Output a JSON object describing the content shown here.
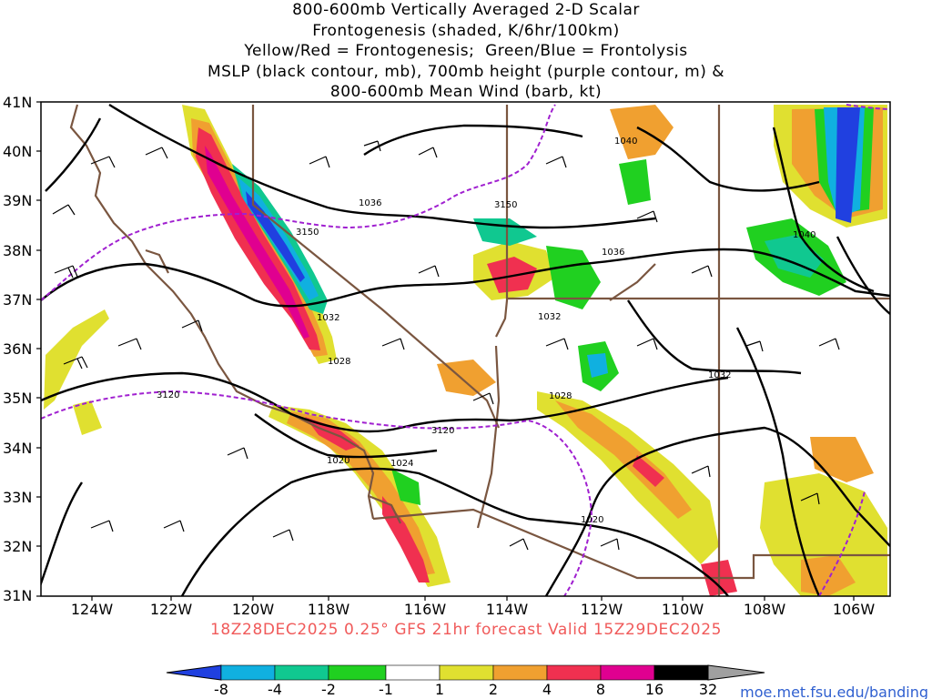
{
  "title_lines": [
    "800-600mb Vertically Averaged 2-D Scalar",
    "Frontogenesis (shaded, K/6hr/100km)",
    "Yellow/Red = Frontogenesis;  Green/Blue = Frontolysis",
    "MSLP (black contour, mb), 700mb height (purple contour, m) &",
    "800-600mb Mean Wind (barb, kt)"
  ],
  "lat_labels": [
    "41N",
    "40N",
    "39N",
    "38N",
    "37N",
    "36N",
    "35N",
    "34N",
    "33N",
    "32N",
    "31N"
  ],
  "lon_labels": [
    "124W",
    "122W",
    "120W",
    "118W",
    "116W",
    "114W",
    "112W",
    "110W",
    "108W",
    "106W"
  ],
  "mslp_labels": [
    "1040",
    "1036",
    "1036",
    "1040",
    "1032",
    "1032",
    "1028",
    "1028",
    "1032",
    "1024",
    "1020",
    "1020"
  ],
  "height_labels": [
    "3150",
    "3150",
    "3120",
    "3120"
  ],
  "footer": "18Z28DEC2025 0.25° GFS 21hr forecast Valid 15Z29DEC2025",
  "colorbar_labels": [
    "-8",
    "-4",
    "-2",
    "-1",
    "1",
    "2",
    "4",
    "8",
    "16",
    "32"
  ],
  "colorbar_colors": [
    "#2040e0",
    "#10b0e0",
    "#10c890",
    "#10d060",
    "#20e020",
    "#ffffff",
    "#e0e030",
    "#f0a030",
    "#f07020",
    "#f03050",
    "#e00090",
    "#000000",
    "#a0a0a0"
  ],
  "credit": "moe.met.fsu.edu/banding",
  "colors": {
    "mslp": "#000000",
    "height": "#a020d0",
    "coast": "#7a5640",
    "frontogenesis_yellow": "#e0e030",
    "frontogenesis_orange": "#f0a030",
    "frontogenesis_red": "#f03050",
    "frontolysis_green": "#20d020",
    "frontolysis_teal": "#10c890",
    "frontolysis_cyan": "#10b0e0",
    "frontolysis_blue": "#2040e0"
  }
}
